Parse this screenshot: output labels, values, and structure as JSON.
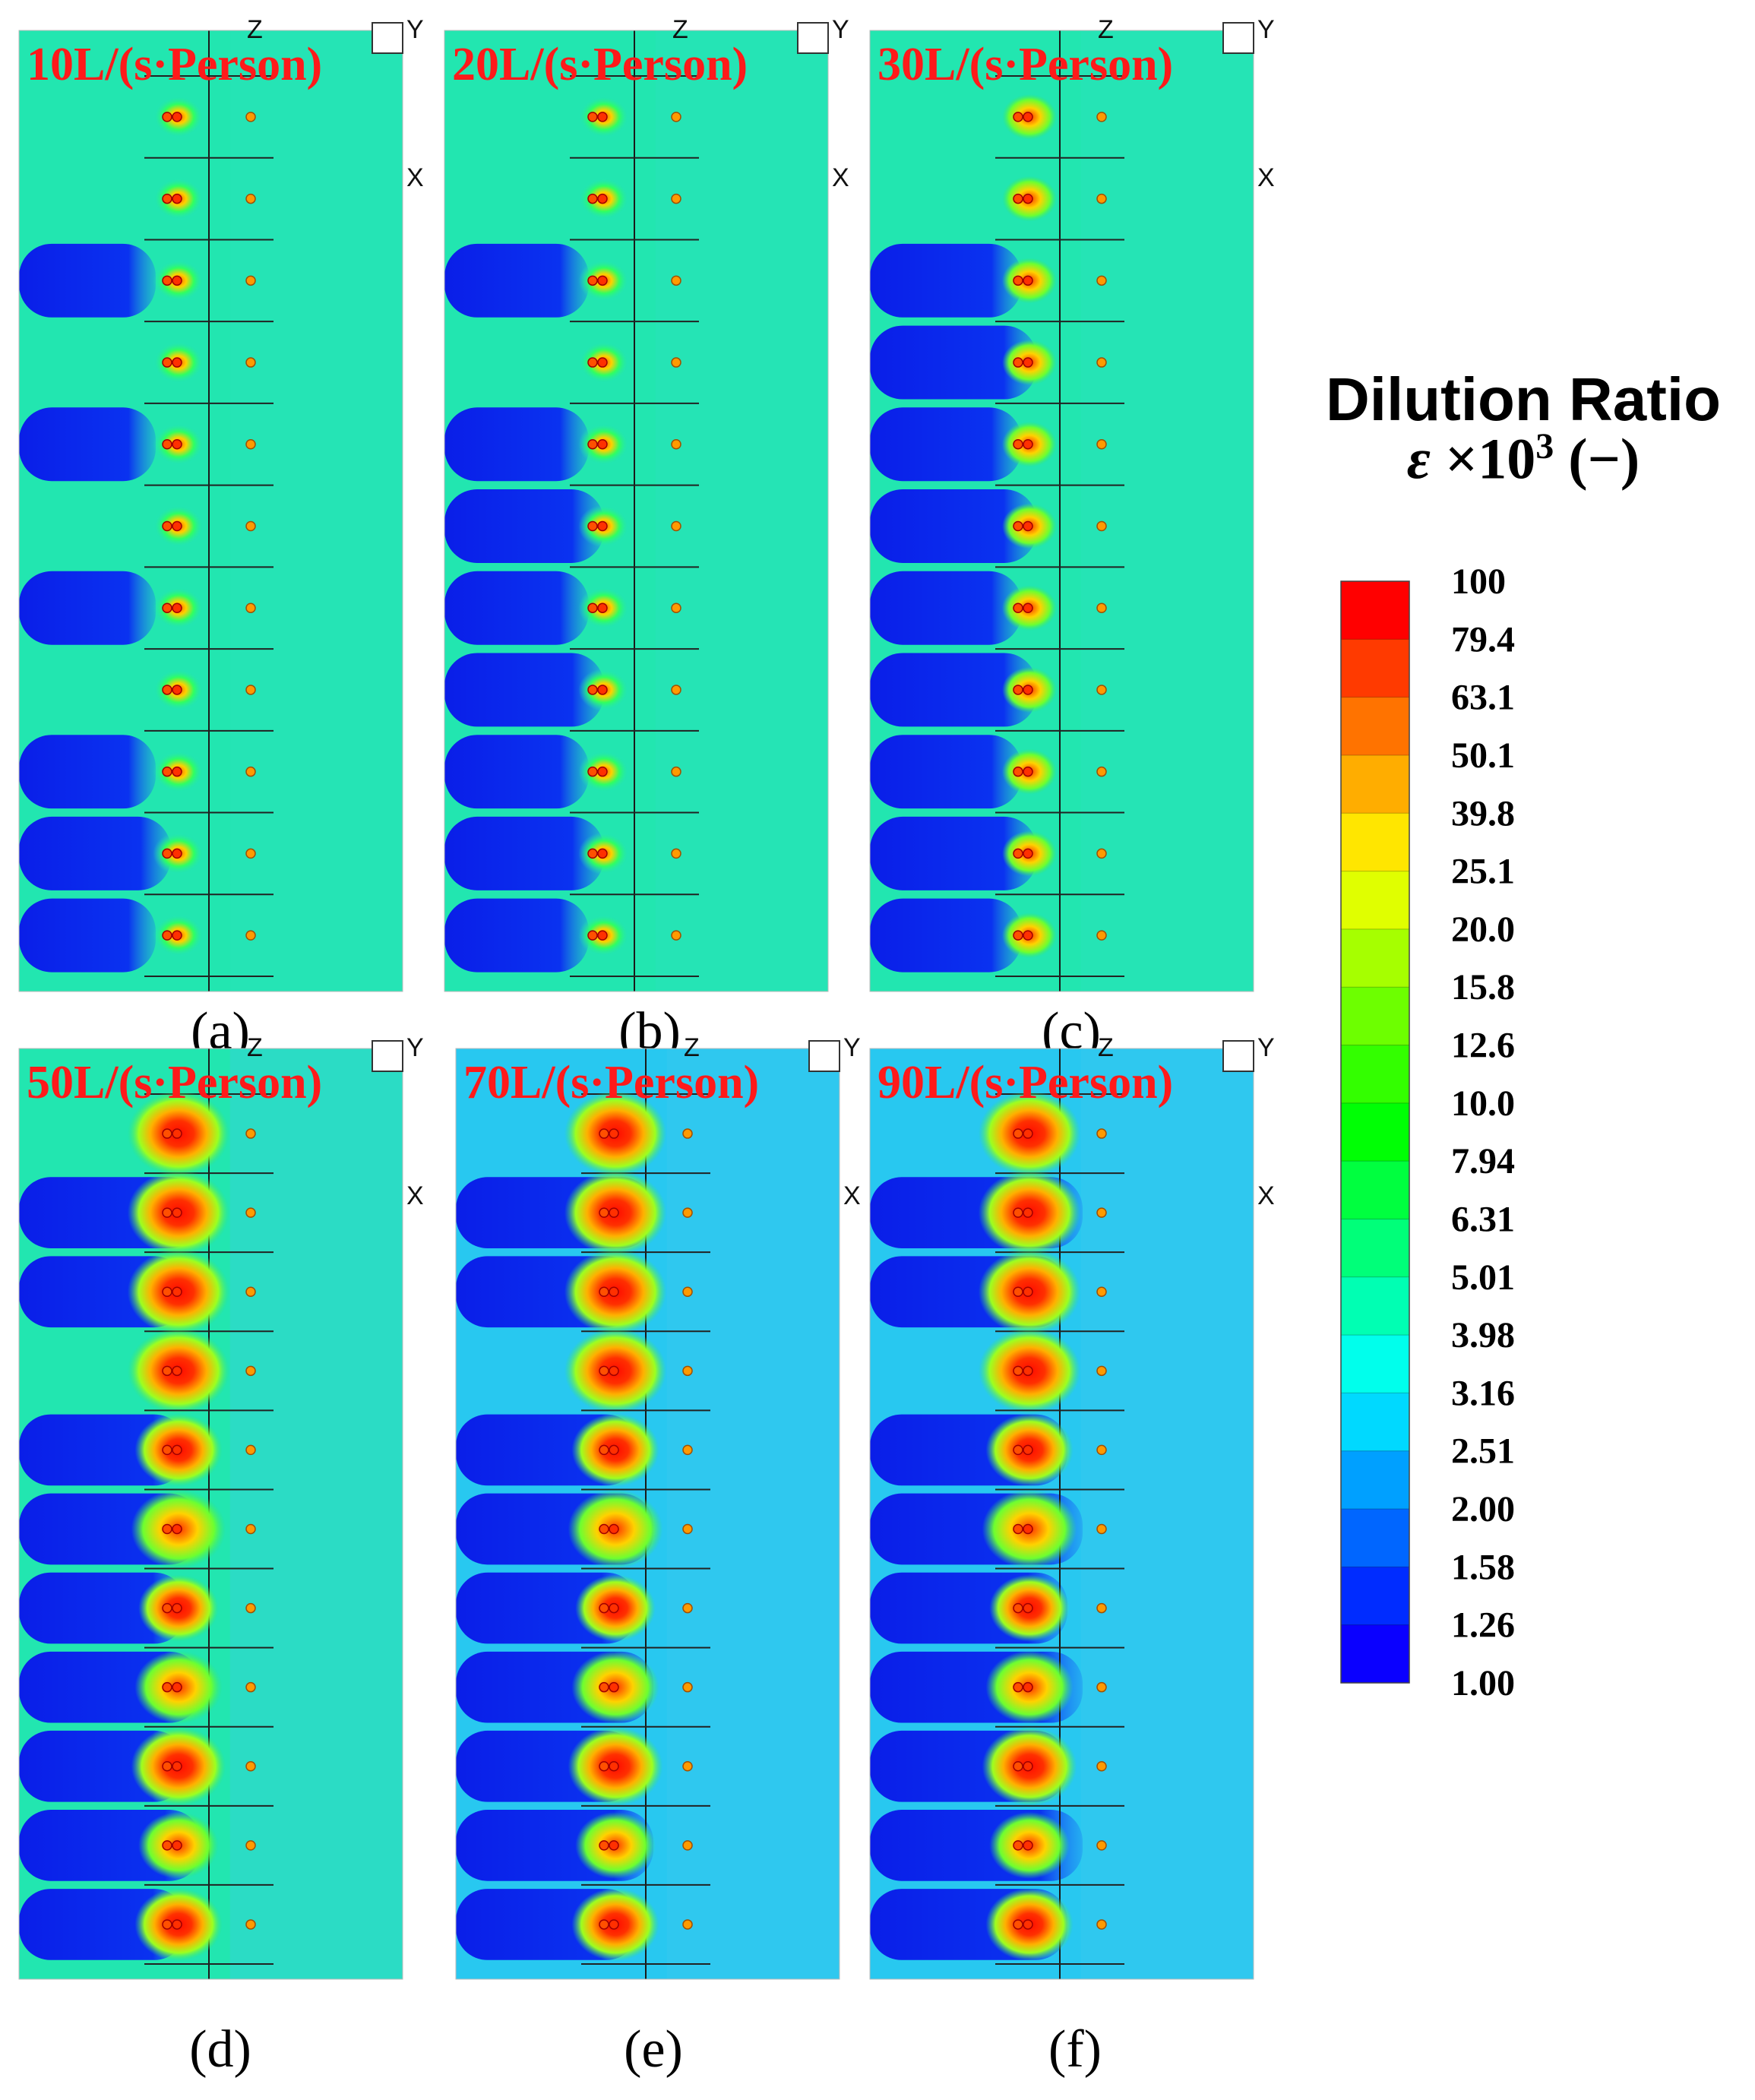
{
  "panels": [
    {
      "id": "a",
      "flow_label": "10L/(s·Person)",
      "caption": "(a)",
      "flow_rate": 10
    },
    {
      "id": "b",
      "flow_label": "20L/(s·Person)",
      "caption": "(b)",
      "flow_rate": 20
    },
    {
      "id": "c",
      "flow_label": "30L/(s·Person)",
      "caption": "(c)",
      "flow_rate": 30
    },
    {
      "id": "d",
      "flow_label": "50L/(s·Person)",
      "caption": "(d)",
      "flow_rate": 50
    },
    {
      "id": "e",
      "flow_label": "70L/(s·Person)",
      "caption": "(e)",
      "flow_rate": 70
    },
    {
      "id": "f",
      "flow_label": "90L/(s·Person)",
      "caption": "(f)",
      "flow_rate": 90
    }
  ],
  "axis_labels": {
    "z": "Z",
    "y": "Y",
    "x": "X"
  },
  "legend": {
    "title": "Dilution Ratio",
    "symbol": "ε",
    "multiplier": "×10",
    "exponent": "3",
    "unit": "(−)",
    "ticks": [
      "100",
      "79.4",
      "63.1",
      "50.1",
      "39.8",
      "25.1",
      "20.0",
      "15.8",
      "12.6",
      "10.0",
      "7.94",
      "6.31",
      "5.01",
      "3.98",
      "3.16",
      "2.51",
      "2.00",
      "1.58",
      "1.26",
      "1.00"
    ],
    "band_colors": [
      "#ff0000",
      "#ff3a00",
      "#ff7300",
      "#ffad00",
      "#ffe600",
      "#e0ff00",
      "#a6ff00",
      "#6dff00",
      "#33ff00",
      "#00ff05",
      "#00ff3f",
      "#00ff79",
      "#00ffb3",
      "#00ffec",
      "#00d9ff",
      "#00a0ff",
      "#0066ff",
      "#002cff",
      "#0a00ff"
    ]
  },
  "colors": {
    "label_red": "#ff1a1a",
    "field_teal": "#22e6b0",
    "field_cyan": "#28c8f0",
    "dark_blue": "#0a28e6",
    "hot_red": "#ff1000",
    "warm_orange": "#ff8a00",
    "green": "#30e850"
  }
}
